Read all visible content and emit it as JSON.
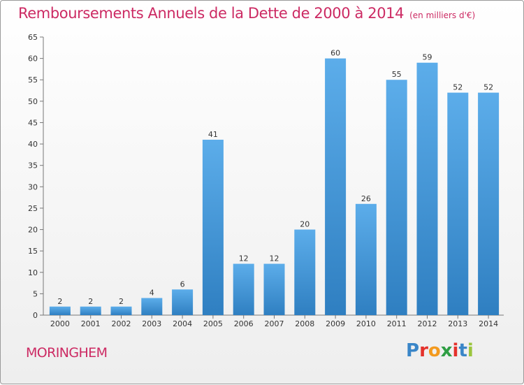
{
  "title": "Remboursements Annuels de la Dette de 2000 à 2014",
  "unit_note": "(en milliers d'€)",
  "commune": "MORINGHEM",
  "logo": {
    "text": "Proxiti",
    "colors": [
      "#3a86c8",
      "#e4312b",
      "#f39a1e",
      "#2f9e44",
      "#e4312b",
      "#3a86c8",
      "#9bc53d"
    ]
  },
  "colors": {
    "accent": "#cc2a63",
    "bar_light": "#5aa9e6",
    "bar_dark": "#2f7fc1"
  },
  "chart_data": {
    "type": "bar",
    "title": "Remboursements Annuels de la Dette de 2000 à 2014",
    "xlabel": "",
    "ylabel": "",
    "categories": [
      "2000",
      "2001",
      "2002",
      "2003",
      "2004",
      "2005",
      "2006",
      "2007",
      "2008",
      "2009",
      "2010",
      "2011",
      "2012",
      "2013",
      "2014"
    ],
    "values": [
      2,
      2,
      2,
      4,
      6,
      41,
      12,
      12,
      20,
      60,
      26,
      55,
      59,
      52,
      52
    ],
    "ylim": [
      0,
      65
    ],
    "yticks": [
      0,
      5,
      10,
      15,
      20,
      25,
      30,
      35,
      40,
      45,
      50,
      55,
      60,
      65
    ],
    "grid": false,
    "data_labels": true
  }
}
